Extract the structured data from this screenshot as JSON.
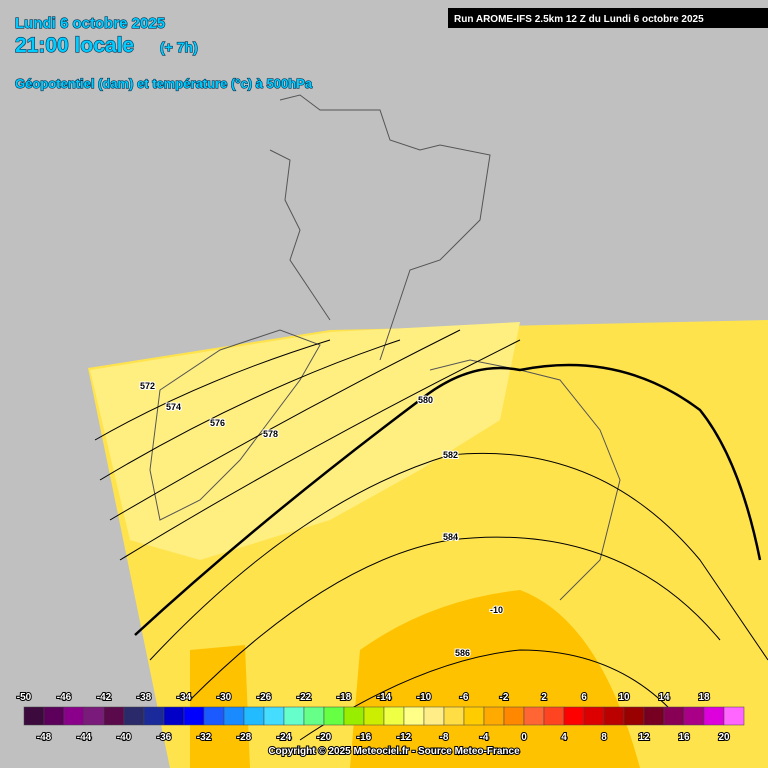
{
  "header": {
    "date": "Lundi 6 octobre 2025",
    "time": "21:00 locale",
    "offset": "(+ 7h)",
    "field": "Géopotentiel (dam) et température (°c) à 500hPa",
    "run": "Run AROME-IFS 2.5km 12 Z du Lundi 6 octobre 2025"
  },
  "contours": [
    "572",
    "574",
    "576",
    "578",
    "580",
    "582",
    "584",
    "586",
    "-10"
  ],
  "legend": {
    "top_labels": [
      -50,
      -46,
      -42,
      -38,
      -34,
      -30,
      -26,
      -22,
      -18,
      -14,
      -10,
      -6,
      -2,
      2,
      6,
      10,
      14,
      18
    ],
    "bottom_labels": [
      -48,
      -44,
      -40,
      -36,
      -32,
      -28,
      -24,
      -20,
      -16,
      -12,
      -8,
      -4,
      0,
      4,
      8,
      12,
      16,
      20
    ],
    "colors": [
      "#3d0a3d",
      "#5c005c",
      "#8a008a",
      "#7a1a7a",
      "#5a0a4a",
      "#2a2a6a",
      "#1a2a9a",
      "#0000c8",
      "#0000ff",
      "#1a5aff",
      "#1a8aff",
      "#22bbff",
      "#44ddff",
      "#66ffcc",
      "#66ff88",
      "#66ff44",
      "#99ee00",
      "#ccee00",
      "#eeff44",
      "#ffff88",
      "#ffee88",
      "#ffdd44",
      "#ffcc00",
      "#ffaa00",
      "#ff8800",
      "#ff6633",
      "#ff4422",
      "#ff0000",
      "#dd0000",
      "#bb0000",
      "#990000",
      "#770022",
      "#880055",
      "#aa0088",
      "#dd00dd",
      "#ff66ff"
    ]
  },
  "footer": {
    "copyright": "Copyright © 2025 Meteociel.fr - Source Meteo-France"
  }
}
